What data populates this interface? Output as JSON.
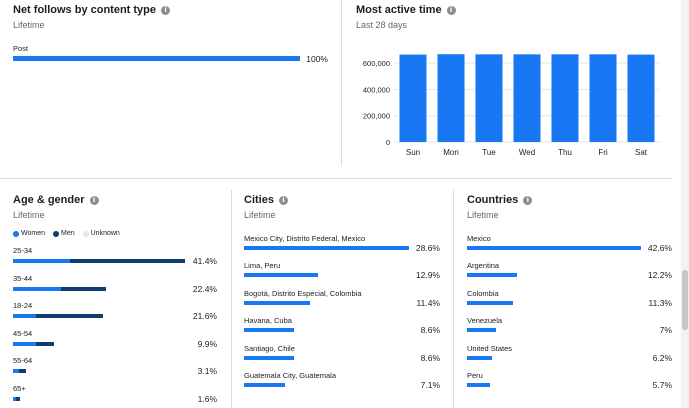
{
  "net_follows": {
    "title": "Net follows by content type",
    "subtitle": "Lifetime",
    "rows": [
      {
        "label": "Post",
        "value": 100,
        "pct": "100%"
      }
    ]
  },
  "most_active": {
    "title": "Most active time",
    "subtitle": "Last 28 days"
  },
  "age_gender": {
    "title": "Age & gender",
    "subtitle": "Lifetime",
    "legend": {
      "women": "Women",
      "men": "Men",
      "unknown": "Unknown"
    },
    "rows": [
      {
        "label": "25-34",
        "pct": "41.4%",
        "value": 41.4,
        "women": 0.33
      },
      {
        "label": "35-44",
        "pct": "22.4%",
        "value": 22.4,
        "women": 0.52
      },
      {
        "label": "18-24",
        "pct": "21.6%",
        "value": 21.6,
        "women": 0.26
      },
      {
        "label": "45-54",
        "pct": "9.9%",
        "value": 9.9,
        "women": 0.55
      },
      {
        "label": "55-64",
        "pct": "3.1%",
        "value": 3.1,
        "women": 0.5
      },
      {
        "label": "65+",
        "pct": "1.6%",
        "value": 1.6,
        "women": 0.5
      }
    ]
  },
  "cities": {
    "title": "Cities",
    "subtitle": "Lifetime",
    "rows": [
      {
        "label": "Mexico City, Distrito Federal, Mexico",
        "pct": "28.6%",
        "value": 28.6
      },
      {
        "label": "Lima, Peru",
        "pct": "12.9%",
        "value": 12.9
      },
      {
        "label": "Bogotá, Distrito Especial, Colombia",
        "pct": "11.4%",
        "value": 11.4
      },
      {
        "label": "Havana, Cuba",
        "pct": "8.6%",
        "value": 8.6
      },
      {
        "label": "Santiago, Chile",
        "pct": "8.6%",
        "value": 8.6
      },
      {
        "label": "Guatemala City, Guatemala",
        "pct": "7.1%",
        "value": 7.1
      }
    ]
  },
  "countries": {
    "title": "Countries",
    "subtitle": "Lifetime",
    "rows": [
      {
        "label": "Mexico",
        "pct": "42.6%",
        "value": 42.6
      },
      {
        "label": "Argentina",
        "pct": "12.2%",
        "value": 12.2
      },
      {
        "label": "Colombia",
        "pct": "11.3%",
        "value": 11.3
      },
      {
        "label": "Venezuela",
        "pct": "7%",
        "value": 7
      },
      {
        "label": "United States",
        "pct": "6.2%",
        "value": 6.2
      },
      {
        "label": "Peru",
        "pct": "5.7%",
        "value": 5.7
      }
    ]
  },
  "colors": {
    "primary": "#1877f2",
    "dark": "#0f3c71",
    "unknown": "#e4e6eb"
  },
  "chart_data": {
    "type": "bar",
    "categories": [
      "Sun",
      "Mon",
      "Tue",
      "Wed",
      "Thu",
      "Fri",
      "Sat"
    ],
    "values": [
      665000,
      668000,
      667000,
      667000,
      667000,
      667000,
      665000
    ],
    "yticks": [
      "0",
      "200,000",
      "400,000",
      "600,000"
    ],
    "ylim": [
      0,
      700000
    ],
    "grid": true
  }
}
